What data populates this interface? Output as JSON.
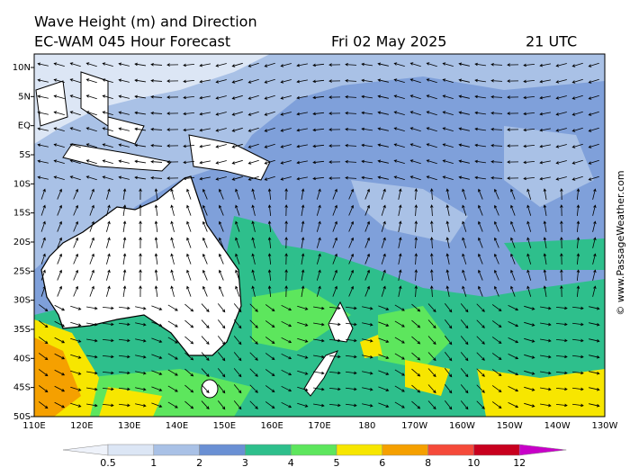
{
  "header": {
    "title": "Wave Height (m) and Direction",
    "model": "EC-WAM 045 Hour Forecast",
    "date": "Fri 02 May 2025",
    "time": "21 UTC"
  },
  "map": {
    "lat_labels": [
      "10N",
      "5N",
      "EQ",
      "5S",
      "10S",
      "15S",
      "20S",
      "25S",
      "30S",
      "35S",
      "40S",
      "45S",
      "50S"
    ],
    "lon_labels": [
      "110E",
      "120E",
      "130E",
      "140E",
      "150E",
      "160E",
      "170E",
      "180",
      "170W",
      "160W",
      "150W",
      "140W",
      "130W"
    ]
  },
  "legend": {
    "labels": [
      "0.5",
      "1",
      "2",
      "3",
      "4",
      "5",
      "6",
      "8",
      "10",
      "12"
    ],
    "colors": [
      "#eef2fa",
      "#dce6f5",
      "#a9c1e6",
      "#6a90d4",
      "#2ebf8c",
      "#5de65d",
      "#f7e600",
      "#f5a000",
      "#f54a3a",
      "#c8001e",
      "#c800c8"
    ]
  },
  "credit": "© www.PassageWeather.com"
}
